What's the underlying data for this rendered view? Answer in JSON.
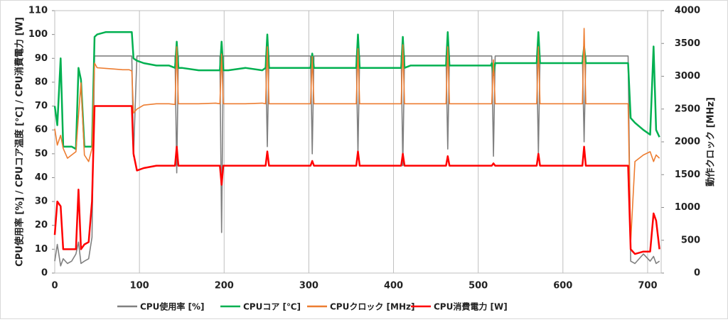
{
  "chart_data": {
    "type": "line",
    "ylabel": "CPU使用率 [%] / CPUコア温度 [℃] / CPU消費電力 [W]",
    "y2label": "動作クロック [MHz]",
    "x": [
      0,
      3,
      7,
      10,
      15,
      20,
      25,
      28,
      31,
      35,
      40,
      44,
      47,
      50,
      60,
      70,
      80,
      88,
      91,
      93,
      97,
      105,
      120,
      135,
      142,
      144,
      146,
      150,
      170,
      190,
      195,
      197,
      199,
      205,
      225,
      245,
      249,
      251,
      253,
      260,
      280,
      300,
      302,
      304,
      306,
      315,
      335,
      355,
      356,
      358,
      360,
      370,
      390,
      405,
      409,
      411,
      413,
      420,
      440,
      460,
      462,
      464,
      466,
      475,
      495,
      515,
      516,
      518,
      520,
      530,
      550,
      567,
      569,
      571,
      573,
      580,
      600,
      620,
      623,
      625,
      627,
      635,
      655,
      675,
      677,
      680,
      685,
      695,
      703,
      707,
      710,
      714
    ],
    "xlim": [
      0,
      716
    ],
    "xticks": [
      0,
      100,
      200,
      300,
      400,
      500,
      600,
      700
    ],
    "ylim": [
      0,
      110
    ],
    "yticks": [
      0,
      10,
      20,
      30,
      40,
      50,
      60,
      70,
      80,
      90,
      100,
      110
    ],
    "y2lim": [
      0,
      4000
    ],
    "y2ticks": [
      0,
      500,
      1000,
      1500,
      2000,
      2500,
      3000,
      3500,
      4000
    ],
    "grid": "x",
    "legend": "bottom",
    "series": [
      {
        "name": "CPU使用率 [%]",
        "color": "#808080",
        "values": [
          5,
          12,
          3,
          6,
          4,
          5,
          8,
          13,
          4,
          5,
          6,
          15,
          91,
          91,
          91,
          91,
          91,
          91,
          91,
          49,
          91,
          91,
          91,
          91,
          91,
          42,
          91,
          91,
          91,
          91,
          91,
          17,
          91,
          91,
          91,
          91,
          91,
          53,
          91,
          91,
          91,
          91,
          91,
          50,
          91,
          91,
          91,
          91,
          91,
          50,
          91,
          91,
          91,
          91,
          91,
          45,
          91,
          91,
          91,
          91,
          91,
          52,
          91,
          91,
          91,
          91,
          91,
          49,
          91,
          91,
          91,
          91,
          91,
          50,
          91,
          91,
          91,
          91,
          91,
          55,
          91,
          91,
          91,
          91,
          91,
          5,
          4,
          8,
          5,
          7,
          4,
          5
        ]
      },
      {
        "name": "CPUコア [℃]",
        "color": "#00b050",
        "values": [
          70,
          62,
          90,
          53,
          53,
          53,
          52,
          86,
          81,
          53,
          53,
          53,
          99,
          100,
          101,
          101,
          101,
          101,
          101,
          90,
          89,
          88,
          87,
          87,
          86,
          97,
          86,
          86,
          85,
          85,
          85,
          97,
          85,
          85,
          86,
          85,
          86,
          100,
          86,
          86,
          86,
          86,
          86,
          92,
          86,
          86,
          86,
          86,
          86,
          100,
          86,
          86,
          86,
          86,
          86,
          99,
          86,
          87,
          87,
          87,
          87,
          101,
          87,
          87,
          87,
          87,
          88,
          83,
          88,
          88,
          88,
          88,
          88,
          101,
          88,
          88,
          88,
          88,
          88,
          95,
          88,
          88,
          88,
          88,
          88,
          65,
          63,
          60,
          58,
          95,
          60,
          57
        ]
      },
      {
        "name": "CPUクロック [MHz]",
        "color": "#ed7d31",
        "axis": "y2",
        "values": [
          2200,
          1950,
          2100,
          1900,
          1750,
          1800,
          1850,
          2400,
          2900,
          1800,
          1700,
          1900,
          3200,
          3130,
          3120,
          3110,
          3100,
          3100,
          3080,
          2440,
          2500,
          2560,
          2580,
          2580,
          2570,
          3450,
          2580,
          2580,
          2580,
          2590,
          2580,
          3340,
          2580,
          2580,
          2580,
          2590,
          2580,
          3450,
          2580,
          2580,
          2580,
          2580,
          2580,
          3300,
          2580,
          2580,
          2580,
          2580,
          2580,
          3420,
          2580,
          2580,
          2580,
          2580,
          2580,
          3480,
          2580,
          2580,
          2580,
          2580,
          2580,
          3450,
          2580,
          2580,
          2580,
          2580,
          2580,
          3250,
          2580,
          2580,
          2580,
          2580,
          2580,
          3450,
          2580,
          2580,
          2580,
          2580,
          2580,
          3730,
          2580,
          2580,
          2580,
          2580,
          2580,
          470,
          1700,
          1800,
          1850,
          1700,
          1800,
          1750
        ]
      },
      {
        "name": "CPU消費電力 [W]",
        "color": "#ff0000",
        "values": [
          16,
          30,
          28,
          10,
          10,
          10,
          10,
          35,
          10,
          12,
          13,
          30,
          70,
          70,
          70,
          70,
          70,
          70,
          70,
          50,
          43,
          44,
          45,
          45,
          45,
          53,
          45,
          45,
          45,
          45,
          45,
          37,
          45,
          45,
          45,
          45,
          45,
          51,
          45,
          45,
          45,
          45,
          45,
          47,
          45,
          45,
          45,
          45,
          45,
          51,
          45,
          45,
          45,
          45,
          45,
          50,
          45,
          45,
          45,
          45,
          45,
          49,
          45,
          45,
          45,
          45,
          45,
          46,
          45,
          45,
          45,
          45,
          45,
          50,
          45,
          45,
          45,
          45,
          45,
          53,
          45,
          45,
          45,
          45,
          45,
          10,
          8,
          9,
          9,
          25,
          22,
          10
        ]
      }
    ]
  }
}
